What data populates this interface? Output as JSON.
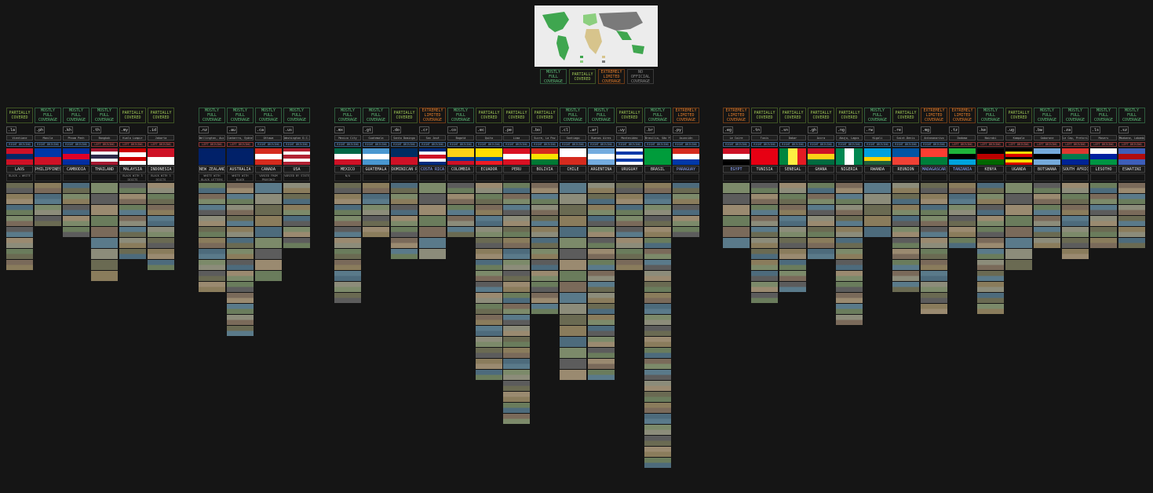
{
  "legend": [
    {
      "label": "MOSTLY FULL COVERAGE",
      "cls": "c-full"
    },
    {
      "label": "PARTIALLY COVERED",
      "cls": "c-part"
    },
    {
      "label": "EXTREMELY LIMITED COVERAGE",
      "cls": "c-ext"
    },
    {
      "label": "NO OFFICIAL COVERAGE",
      "cls": "c-none"
    }
  ],
  "colors": {
    "background": "#151515",
    "full": "#5fbf7a",
    "partial": "#9cc454",
    "extreme": "#e07a2a",
    "none": "#8a8a8a",
    "right_drive": "#7fa9d8",
    "left_drive": "#e07070"
  },
  "countries": [
    {
      "name": "LAOS",
      "tld": ".la",
      "capital": "Vientiane",
      "side": "RIGHT DRIVING",
      "coverage": "PARTIALLY COVERED",
      "cls": "c-part",
      "notes": "BLACK + WHITE",
      "flag": [
        "#ce1126",
        "#002868",
        "#ce1126"
      ],
      "thumbs": 8
    },
    {
      "name": "PHILIPPINES",
      "tld": ".ph",
      "capital": "Manila",
      "side": "RIGHT DRIVING",
      "coverage": "MOSTLY FULL COVERAGE",
      "cls": "c-full",
      "notes": "",
      "flag": [
        "#0038a8",
        "#ce1126"
      ],
      "thumbs": 4
    },
    {
      "name": "CAMBODIA",
      "tld": ".kh",
      "capital": "Phnom Penh",
      "side": "RIGHT DRIVING",
      "coverage": "MOSTLY FULL COVERAGE",
      "cls": "c-full",
      "notes": "",
      "flag": [
        "#032ea1",
        "#e00025",
        "#032ea1"
      ],
      "thumbs": 5
    },
    {
      "name": "THAILAND",
      "tld": ".th",
      "capital": "Bangkok",
      "side": "LEFT DRIVING",
      "coverage": "MOSTLY FULL COVERAGE",
      "cls": "c-full",
      "notes": "",
      "flag": [
        "#a51931",
        "#f4f5f8",
        "#2d2a4a",
        "#f4f5f8",
        "#a51931"
      ],
      "thumbs": 9
    },
    {
      "name": "MALAYSIA",
      "tld": ".my",
      "capital": "Kuala Lumpur",
      "side": "LEFT DRIVING",
      "coverage": "PARTIALLY COVERED",
      "cls": "c-part",
      "notes": "BLACK WITH 3 DIGITS",
      "flag": [
        "#cc0001",
        "#ffffff",
        "#cc0001",
        "#ffffff"
      ],
      "thumbs": 7
    },
    {
      "name": "INDONESIA",
      "tld": ".id",
      "capital": "Jakarta",
      "side": "LEFT DRIVING",
      "coverage": "PARTIALLY COVERED",
      "cls": "c-part",
      "notes": "BLACK WITH 3 DIGITS",
      "flag": [
        "#ce1126",
        "#ffffff"
      ],
      "thumbs": 8
    },
    {
      "name": "NEW ZEALAND",
      "tld": ".nz",
      "capital": "Wellington, Auckland",
      "side": "LEFT DRIVING",
      "coverage": "MOSTLY FULL COVERAGE",
      "cls": "c-full",
      "notes": "WHITE WITH BLACK LETTERS",
      "flag": [
        "#012169",
        "#012169"
      ],
      "thumbs": 10
    },
    {
      "name": "AUSTRALIA",
      "tld": ".au",
      "capital": "Canberra, Sydney",
      "side": "LEFT DRIVING",
      "coverage": "MOSTLY FULL COVERAGE",
      "cls": "c-full",
      "notes": "WHITE WITH BLACK",
      "flag": [
        "#012169",
        "#012169"
      ],
      "thumbs": 14
    },
    {
      "name": "CANADA",
      "tld": ".ca",
      "capital": "Ottawa",
      "side": "RIGHT DRIVING",
      "coverage": "MOSTLY FULL COVERAGE",
      "cls": "c-full",
      "notes": "VARIED FROM PROVINCE",
      "flag": [
        "#d52b1e",
        "#ffffff",
        "#d52b1e"
      ],
      "thumbs": 9
    },
    {
      "name": "USA",
      "tld": ".us",
      "capital": "Washington D.C.",
      "side": "RIGHT DRIVING",
      "coverage": "MOSTLY FULL COVERAGE",
      "cls": "c-full",
      "notes": "VARIED BY STATE",
      "flag": [
        "#b22234",
        "#ffffff",
        "#b22234",
        "#ffffff",
        "#b22234"
      ],
      "thumbs": 6
    },
    {
      "name": "MEXICO",
      "tld": ".mx",
      "capital": "Mexico City",
      "side": "RIGHT DRIVING",
      "coverage": "MOSTLY FULL COVERAGE",
      "cls": "c-full",
      "notes": "N/A",
      "flag": [
        "#006847",
        "#ffffff",
        "#ce1126"
      ],
      "thumbs": 11
    },
    {
      "name": "GUATEMALA",
      "tld": ".gt",
      "capital": "Guatemala",
      "side": "RIGHT DRIVING",
      "coverage": "MOSTLY FULL COVERAGE",
      "cls": "c-full",
      "notes": "",
      "flag": [
        "#4997d0",
        "#ffffff",
        "#4997d0"
      ],
      "thumbs": 5
    },
    {
      "name": "DOMINICAN REP.",
      "tld": ".do",
      "capital": "Santo Domingo",
      "side": "RIGHT DRIVING",
      "coverage": "PARTIALLY COVERED",
      "cls": "c-part",
      "notes": "",
      "flag": [
        "#002d62",
        "#ce1126"
      ],
      "thumbs": 7
    },
    {
      "name": "COSTA RICA",
      "tld": ".cr",
      "capital": "San José",
      "side": "RIGHT DRIVING",
      "coverage": "EXTREMELY LIMITED COVERAGE",
      "cls": "c-ext",
      "hl": true,
      "notes": "",
      "flag": [
        "#002b7f",
        "#ffffff",
        "#ce1126",
        "#ffffff",
        "#002b7f"
      ],
      "thumbs": 7
    },
    {
      "name": "COLOMBIA",
      "tld": ".co",
      "capital": "Bogotá",
      "side": "RIGHT DRIVING",
      "coverage": "MOSTLY FULL COVERAGE",
      "cls": "c-full",
      "notes": "",
      "flag": [
        "#fcd116",
        "#fcd116",
        "#003893",
        "#ce1126"
      ],
      "thumbs": 5
    },
    {
      "name": "ECUADOR",
      "tld": ".ec",
      "capital": "Quito",
      "side": "RIGHT DRIVING",
      "coverage": "PARTIALLY COVERED",
      "cls": "c-part",
      "notes": "",
      "flag": [
        "#ffdd00",
        "#ffdd00",
        "#034ea2",
        "#ed1c24"
      ],
      "thumbs": 18
    },
    {
      "name": "PERU",
      "tld": ".pe",
      "capital": "Lima",
      "side": "RIGHT DRIVING",
      "coverage": "PARTIALLY COVERED",
      "cls": "c-part",
      "notes": "",
      "flag": [
        "#d91023",
        "#ffffff",
        "#d91023"
      ],
      "thumbs": 22
    },
    {
      "name": "BOLIVIA",
      "tld": ".bo",
      "capital": "Sucre, La Paz",
      "side": "RIGHT DRIVING",
      "coverage": "PARTIALLY COVERED",
      "cls": "c-part",
      "notes": "",
      "flag": [
        "#d52b1e",
        "#f9e300",
        "#007934"
      ],
      "thumbs": 12
    },
    {
      "name": "CHILE",
      "tld": ".cl",
      "capital": "Santiago",
      "side": "RIGHT DRIVING",
      "coverage": "MOSTLY FULL COVERAGE",
      "cls": "c-full",
      "notes": "",
      "flag": [
        "#ffffff",
        "#d52b1e"
      ],
      "thumbs": 18
    },
    {
      "name": "ARGENTINA",
      "tld": ".ar",
      "capital": "Buenos Aires",
      "side": "RIGHT DRIVING",
      "coverage": "MOSTLY FULL COVERAGE",
      "cls": "c-full",
      "notes": "",
      "flag": [
        "#74acdf",
        "#ffffff",
        "#74acdf"
      ],
      "thumbs": 18
    },
    {
      "name": "URUGUAY",
      "tld": ".uy",
      "capital": "Montevideo",
      "side": "RIGHT DRIVING",
      "coverage": "PARTIALLY COVERED",
      "cls": "c-part",
      "notes": "",
      "flag": [
        "#ffffff",
        "#0038a8",
        "#ffffff",
        "#0038a8",
        "#ffffff"
      ],
      "thumbs": 8
    },
    {
      "name": "BRASIL",
      "tld": ".br",
      "capital": "Brasília, São Paulo",
      "side": "RIGHT DRIVING",
      "coverage": "MOSTLY FULL COVERAGE",
      "cls": "c-full",
      "notes": "",
      "flag": [
        "#009c3b"
      ],
      "thumbs": 26
    },
    {
      "name": "PARAGUAY",
      "tld": ".py",
      "capital": "Asunción",
      "side": "RIGHT DRIVING",
      "coverage": "EXTREMELY LIMITED COVERAGE",
      "cls": "c-ext",
      "hl": true,
      "notes": "",
      "flag": [
        "#d52b1e",
        "#ffffff",
        "#0038a8"
      ],
      "thumbs": 5
    },
    {
      "name": "EGYPT",
      "tld": ".eg",
      "capital": "Le Caire",
      "side": "RIGHT DRIVING",
      "coverage": "EXTREMELY LIMITED COVERAGE",
      "cls": "c-ext",
      "hl": true,
      "notes": "",
      "flag": [
        "#ce1126",
        "#ffffff",
        "#000000"
      ],
      "thumbs": 6
    },
    {
      "name": "TUNISIA",
      "tld": ".tn",
      "capital": "Tunis",
      "side": "RIGHT DRIVING",
      "coverage": "PARTIALLY COVERED",
      "cls": "c-part",
      "notes": "",
      "flag": [
        "#e70013"
      ],
      "thumbs": 11
    },
    {
      "name": "SENEGAL",
      "tld": ".sn",
      "capital": "Dakar",
      "side": "RIGHT DRIVING",
      "coverage": "PARTIALLY COVERED",
      "cls": "c-part",
      "notes": "",
      "flag": [
        "#00853f",
        "#fdef42",
        "#e31b23"
      ],
      "vert": true,
      "thumbs": 10
    },
    {
      "name": "GHANA",
      "tld": ".gh",
      "capital": "Accra",
      "side": "RIGHT DRIVING",
      "coverage": "PARTIALLY COVERED",
      "cls": "c-part",
      "notes": "",
      "flag": [
        "#ce1126",
        "#fcd116",
        "#006b3f"
      ],
      "thumbs": 7
    },
    {
      "name": "NIGERIA",
      "tld": ".ng",
      "capital": "Abuja, Lagos",
      "side": "RIGHT DRIVING",
      "coverage": "PARTIALLY COVERED",
      "cls": "c-part",
      "notes": "",
      "flag": [
        "#008751",
        "#ffffff",
        "#008751"
      ],
      "vert": true,
      "thumbs": 13
    },
    {
      "name": "RWANDA",
      "tld": ".rw",
      "capital": "Kigali",
      "side": "RIGHT DRIVING",
      "coverage": "MOSTLY FULL COVERAGE",
      "cls": "c-full",
      "notes": "",
      "flag": [
        "#00a1de",
        "#00a1de",
        "#fad201",
        "#20603d"
      ],
      "thumbs": 5
    },
    {
      "name": "REUNION",
      "tld": ".re",
      "capital": "Saint-Denis",
      "side": "RIGHT DRIVING",
      "coverage": "PARTIALLY COVERED",
      "cls": "c-part",
      "notes": "",
      "flag": [
        "#0055a4",
        "#ef4135"
      ],
      "thumbs": 10
    },
    {
      "name": "MADAGASCAR",
      "tld": ".mg",
      "capital": "Antananarivo",
      "side": "RIGHT DRIVING",
      "coverage": "EXTREMELY LIMITED COVERAGE",
      "cls": "c-ext",
      "hl": true,
      "notes": "",
      "flag": [
        "#fc3d32",
        "#007e3a"
      ],
      "thumbs": 12
    },
    {
      "name": "TANZANIA",
      "tld": ".tz",
      "capital": "Dodoma",
      "side": "LEFT DRIVING",
      "coverage": "EXTREMELY LIMITED COVERAGE",
      "cls": "c-ext",
      "hl": true,
      "notes": "",
      "flag": [
        "#1eb53a",
        "#000000",
        "#00a3dd"
      ],
      "thumbs": 6
    },
    {
      "name": "KENYA",
      "tld": ".ke",
      "capital": "Nairobi",
      "side": "LEFT DRIVING",
      "coverage": "MOSTLY FULL COVERAGE",
      "cls": "c-full",
      "notes": "",
      "flag": [
        "#000000",
        "#bb0000",
        "#006600"
      ],
      "thumbs": 12
    },
    {
      "name": "UGANDA",
      "tld": ".ug",
      "capital": "Kampala",
      "side": "LEFT DRIVING",
      "coverage": "PARTIALLY COVERED",
      "cls": "c-part",
      "notes": "",
      "flag": [
        "#000000",
        "#fcdc04",
        "#d90000",
        "#000000",
        "#fcdc04",
        "#d90000"
      ],
      "thumbs": 8
    },
    {
      "name": "BOTSWANA",
      "tld": ".bw",
      "capital": "Gaborone",
      "side": "LEFT DRIVING",
      "coverage": "MOSTLY FULL COVERAGE",
      "cls": "c-full",
      "notes": "",
      "flag": [
        "#75aadb",
        "#000000",
        "#75aadb"
      ],
      "thumbs": 6
    },
    {
      "name": "SOUTH AFRICA",
      "tld": ".za",
      "capital": "Le Cap, Pretoria",
      "side": "LEFT DRIVING",
      "coverage": "MOSTLY FULL COVERAGE",
      "cls": "c-full",
      "notes": "",
      "flag": [
        "#de3831",
        "#007a4d",
        "#002395"
      ],
      "thumbs": 7
    },
    {
      "name": "LESOTHO",
      "tld": ".ls",
      "capital": "Maseru",
      "side": "LEFT DRIVING",
      "coverage": "MOSTLY FULL COVERAGE",
      "cls": "c-full",
      "notes": "",
      "flag": [
        "#ffffff",
        "#00209f",
        "#009543"
      ],
      "thumbs": 6
    },
    {
      "name": "ESWATINI",
      "tld": ".sz",
      "capital": "Mbabane, Lobamba",
      "side": "LEFT DRIVING",
      "coverage": "MOSTLY FULL COVERAGE",
      "cls": "c-full",
      "notes": "",
      "flag": [
        "#3e5eb9",
        "#b10c0c",
        "#3e5eb9"
      ],
      "thumbs": 6
    }
  ]
}
